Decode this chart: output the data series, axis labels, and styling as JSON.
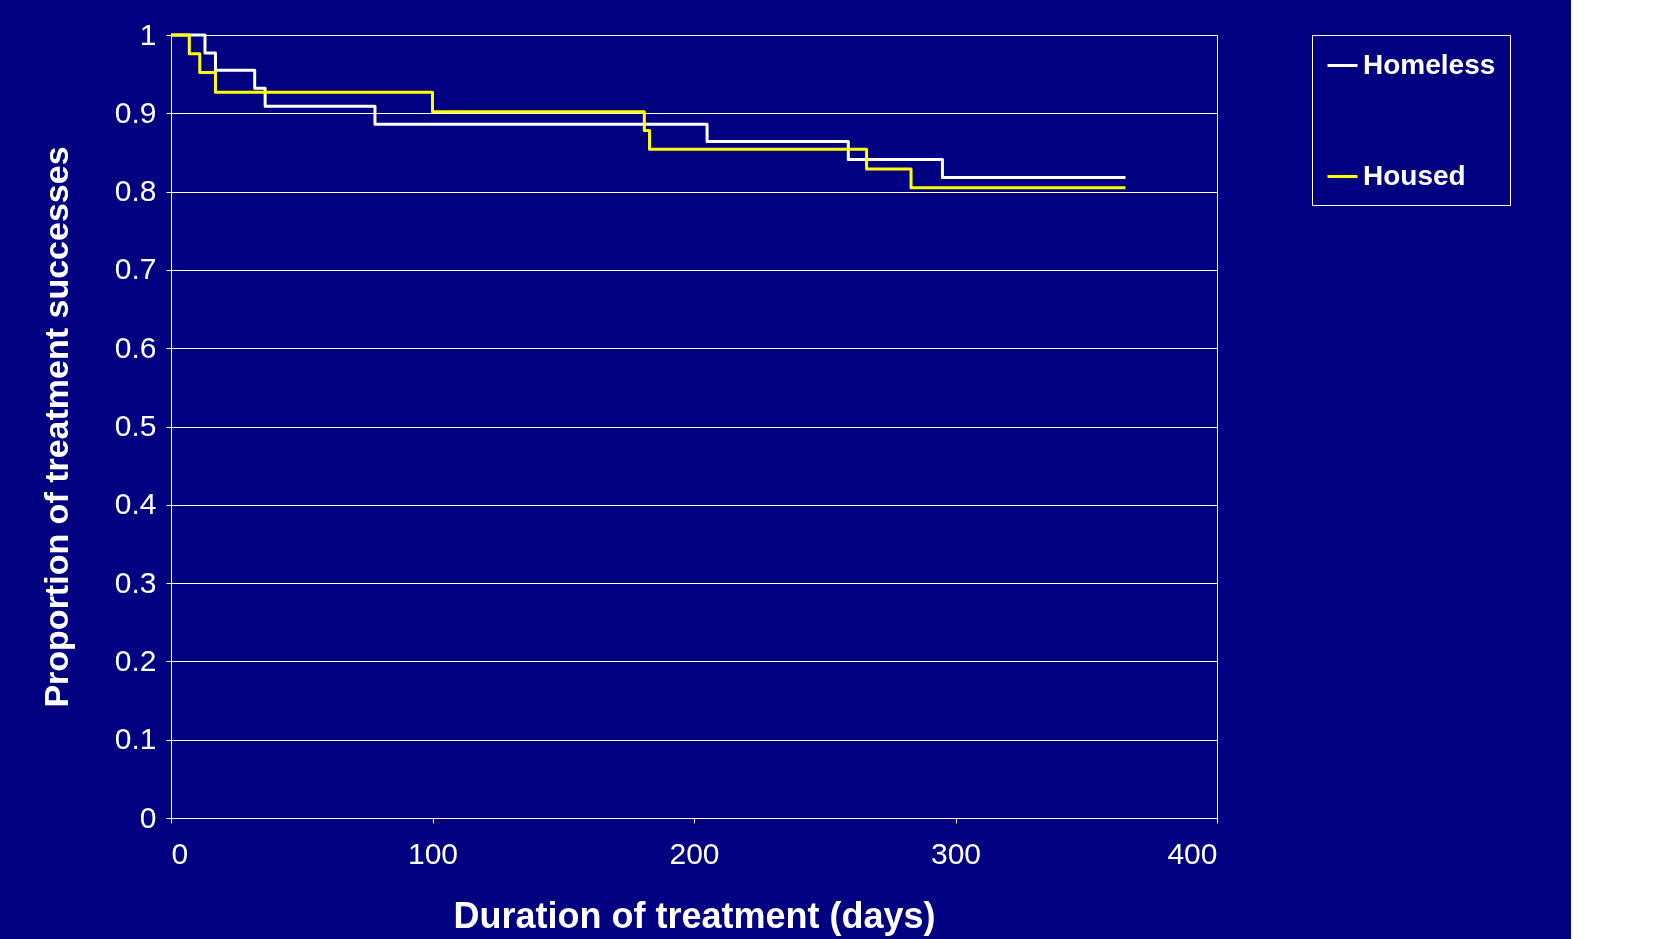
{
  "chart_data": {
    "type": "step",
    "xlabel": "Duration of treatment (days)",
    "ylabel": "Proportion of treatment successes",
    "xlim": [
      0,
      400
    ],
    "xticks": [
      0,
      100,
      200,
      300,
      400
    ],
    "ylim": [
      0,
      1
    ],
    "yticks": [
      0,
      0.1,
      0.2,
      0.3,
      0.4,
      0.5,
      0.6,
      0.7,
      0.8,
      0.9,
      1
    ],
    "grid": "y",
    "legend": "right",
    "line_style": "solid",
    "series": [
      {
        "name": "Homeless",
        "color": "#ffffff",
        "x": [
          0,
          13,
          17,
          32,
          36,
          78,
          205,
          259,
          295,
          365
        ],
        "values": [
          1,
          0.977,
          0.955,
          0.932,
          0.909,
          0.886,
          0.864,
          0.841,
          0.818,
          0.818
        ]
      },
      {
        "name": "Housed",
        "color": "#ffff00",
        "x": [
          0,
          7,
          11,
          17,
          100,
          181,
          183,
          266,
          283,
          365
        ],
        "values": [
          1,
          0.976,
          0.952,
          0.927,
          0.902,
          0.878,
          0.854,
          0.829,
          0.805,
          0.805
        ]
      }
    ]
  }
}
